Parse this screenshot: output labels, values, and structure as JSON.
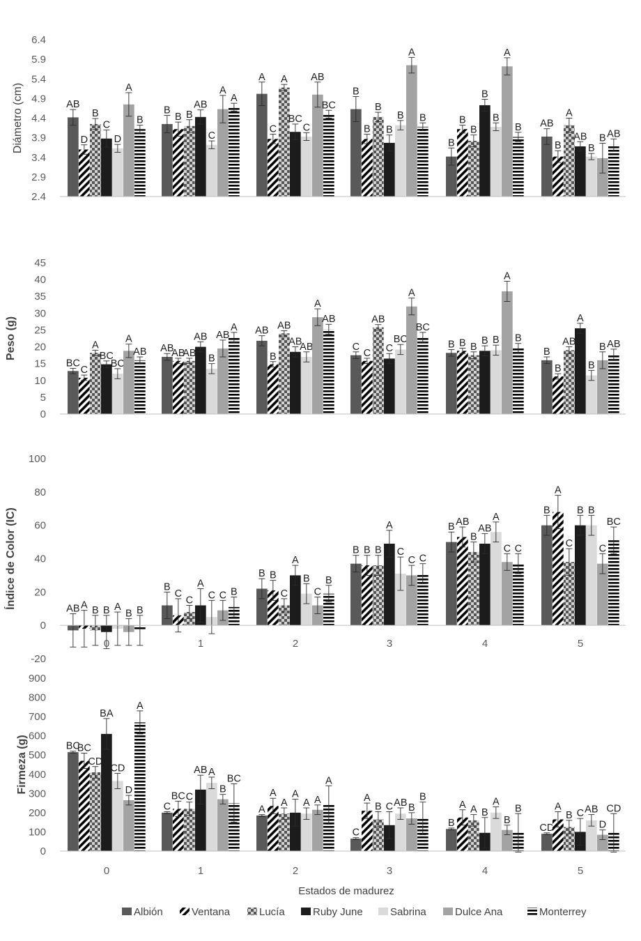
{
  "chart_data": [
    {
      "type": "bar",
      "ylabel": "Diámetro (cm)",
      "ylim": [
        2.4,
        6.4
      ],
      "yticks": [
        "2.4",
        "2.9",
        "3.4",
        "3.9",
        "4.4",
        "4.9",
        "5.4",
        "5.9",
        "6.4"
      ],
      "categories": [
        "0",
        "1",
        "2",
        "3",
        "4",
        "5"
      ],
      "show_categories": false,
      "series": [
        {
          "name": "Albión",
          "values": [
            4.42,
            4.25,
            5.02,
            4.63,
            3.42,
            3.93
          ],
          "errors": [
            0.2,
            0.22,
            0.3,
            0.32,
            0.22,
            0.2
          ],
          "letters": [
            "AB",
            "B",
            "A",
            "B",
            "B",
            "AB"
          ]
        },
        {
          "name": "Ventana",
          "values": [
            3.6,
            4.12,
            3.87,
            3.87,
            4.12,
            3.42
          ],
          "errors": [
            0.12,
            0.18,
            0.12,
            0.12,
            0.1,
            0.15
          ],
          "letters": [
            "D",
            "B",
            "C",
            "B",
            "B",
            "B"
          ]
        },
        {
          "name": "Lucía",
          "values": [
            4.25,
            4.2,
            5.18,
            4.43,
            3.82,
            4.22
          ],
          "errors": [
            0.14,
            0.16,
            0.08,
            0.12,
            0.15,
            0.18
          ],
          "letters": [
            "B",
            "B",
            "A",
            "B",
            "B",
            "A"
          ]
        },
        {
          "name": "Ruby June",
          "values": [
            3.88,
            4.43,
            4.05,
            3.77,
            4.73,
            3.68
          ],
          "errors": [
            0.22,
            0.18,
            0.2,
            0.2,
            0.15,
            0.12
          ],
          "letters": [
            "C",
            "AB",
            "BC",
            "B",
            "B",
            "AB"
          ]
        },
        {
          "name": "Sabrina",
          "values": [
            3.63,
            3.72,
            3.93,
            4.22,
            4.18,
            3.42
          ],
          "errors": [
            0.1,
            0.1,
            0.1,
            0.12,
            0.1,
            0.08
          ],
          "letters": [
            "D",
            "C",
            "C",
            "B",
            "B",
            "B"
          ]
        },
        {
          "name": "Dulce Ana",
          "values": [
            4.75,
            4.63,
            5.0,
            5.75,
            5.72,
            3.38
          ],
          "errors": [
            0.3,
            0.35,
            0.32,
            0.2,
            0.22,
            0.38
          ],
          "letters": [
            "A",
            "A",
            "AB",
            "A",
            "A",
            "B"
          ]
        },
        {
          "name": "Monterrey",
          "values": [
            4.12,
            4.68,
            4.5,
            4.18,
            3.92,
            3.72
          ],
          "errors": [
            0.1,
            0.1,
            0.1,
            0.1,
            0.12,
            0.15
          ],
          "letters": [
            "B",
            "A",
            "BC",
            "B",
            "B",
            "AB"
          ]
        }
      ]
    },
    {
      "type": "bar",
      "ylabel": "Peso (g)",
      "ylim": [
        0,
        45
      ],
      "yticks": [
        "0",
        "5",
        "10",
        "15",
        "20",
        "25",
        "30",
        "35",
        "40",
        "45"
      ],
      "categories": [
        "0",
        "1",
        "2",
        "3",
        "4",
        "5"
      ],
      "show_categories": false,
      "series": [
        {
          "name": "Albión",
          "values": [
            12.8,
            17.0,
            21.8,
            17.5,
            18.2,
            16.0
          ],
          "errors": [
            0.8,
            1.0,
            1.5,
            1.0,
            1.0,
            1.0
          ],
          "letters": [
            "BC",
            "AB",
            "AB",
            "C",
            "B",
            "B"
          ]
        },
        {
          "name": "Ventana",
          "values": [
            10.8,
            15.8,
            14.8,
            15.8,
            18.8,
            11.2
          ],
          "errors": [
            0.8,
            0.8,
            0.8,
            0.8,
            0.8,
            0.8
          ],
          "letters": [
            "C",
            "AB",
            "B",
            "C",
            "B",
            "B"
          ]
        },
        {
          "name": "Lucía",
          "values": [
            18.2,
            15.8,
            24.0,
            25.8,
            17.5,
            19.0
          ],
          "errors": [
            0.8,
            0.8,
            0.8,
            0.8,
            1.0,
            1.0
          ],
          "letters": [
            "A",
            "AB",
            "AB",
            "AB",
            "B",
            "AB"
          ]
        },
        {
          "name": "Ruby June",
          "values": [
            14.8,
            20.0,
            18.5,
            16.5,
            18.8,
            25.5
          ],
          "errors": [
            1.0,
            1.5,
            1.5,
            1.5,
            1.5,
            1.5
          ],
          "letters": [
            "BC",
            "AB",
            "AB",
            "C",
            "B",
            "A"
          ]
        },
        {
          "name": "Sabrina",
          "values": [
            12.0,
            13.5,
            17.0,
            19.2,
            19.0,
            11.5
          ],
          "errors": [
            1.5,
            1.5,
            1.5,
            1.5,
            1.5,
            1.5
          ],
          "letters": [
            "BC",
            "B",
            "AB",
            "BC",
            "B",
            "B"
          ]
        },
        {
          "name": "Dulce Ana",
          "values": [
            18.8,
            19.5,
            28.8,
            32.0,
            36.5,
            16.0
          ],
          "errors": [
            2.0,
            2.5,
            2.5,
            2.5,
            3.0,
            2.5
          ],
          "letters": [
            "A",
            "AB",
            "A",
            "A",
            "A",
            "B"
          ]
        },
        {
          "name": "Monterrey",
          "values": [
            16.0,
            22.8,
            25.2,
            22.8,
            19.5,
            17.8
          ],
          "errors": [
            1.0,
            1.5,
            1.5,
            1.5,
            1.5,
            1.5
          ],
          "letters": [
            "AB",
            "A",
            "AB",
            "BC",
            "B",
            "AB"
          ]
        }
      ]
    },
    {
      "type": "bar",
      "ylabel": "Índice de Color (IC)",
      "ylim": [
        -20,
        100
      ],
      "yticks": [
        "-20",
        "0",
        "20",
        "40",
        "60",
        "80",
        "100"
      ],
      "categories": [
        "0",
        "1",
        "2",
        "3",
        "4",
        "5"
      ],
      "show_categories": true,
      "series": [
        {
          "name": "Albión",
          "values": [
            -3,
            12,
            22,
            37,
            50,
            60
          ],
          "errors": [
            10,
            8,
            6,
            5,
            6,
            6
          ],
          "letters": [
            "AB",
            "B",
            "B",
            "B",
            "B",
            "B"
          ]
        },
        {
          "name": "Ventana",
          "values": [
            -2,
            6,
            21,
            36,
            53,
            68
          ],
          "errors": [
            11,
            10,
            6,
            6,
            6,
            10
          ],
          "letters": [
            "A",
            "C",
            "B",
            "B",
            "AB",
            "A"
          ]
        },
        {
          "name": "Lucía",
          "values": [
            -3,
            8,
            12,
            36,
            44,
            38
          ],
          "errors": [
            9,
            4,
            4,
            6,
            6,
            8
          ],
          "letters": [
            "B",
            "C",
            "C",
            "B",
            "B",
            "C"
          ]
        },
        {
          "name": "Ruby June",
          "values": [
            -4,
            12,
            30,
            49,
            49,
            60
          ],
          "errors": [
            10,
            10,
            6,
            8,
            6,
            6
          ],
          "letters": [
            "B",
            "A",
            "A",
            "A",
            "AB",
            "B"
          ]
        },
        {
          "name": "Sabrina",
          "values": [
            -2,
            5,
            19,
            31,
            56,
            60
          ],
          "errors": [
            10,
            10,
            6,
            10,
            6,
            6
          ],
          "letters": [
            "A",
            "C",
            "B",
            "C",
            "A",
            "B"
          ]
        },
        {
          "name": "Dulce Ana",
          "values": [
            -4,
            9,
            12,
            30,
            38,
            37
          ],
          "errors": [
            8,
            6,
            5,
            6,
            5,
            6
          ],
          "letters": [
            "B",
            "C",
            "C",
            "C",
            "C",
            "C"
          ]
        },
        {
          "name": "Monterrey",
          "values": [
            -3,
            11,
            19,
            31,
            37,
            51
          ],
          "errors": [
            9,
            6,
            5,
            6,
            6,
            8
          ],
          "letters": [
            "B",
            "B",
            "B",
            "C",
            "C",
            "BC"
          ]
        }
      ]
    },
    {
      "type": "bar",
      "ylabel": "Firmeza (g)",
      "xlabel": "Estados de madurez",
      "ylim": [
        0,
        900
      ],
      "yticks": [
        "0",
        "100",
        "200",
        "300",
        "400",
        "500",
        "600",
        "700",
        "800",
        "900"
      ],
      "categories": [
        "0",
        "1",
        "2",
        "3",
        "4",
        "5"
      ],
      "show_categories": true,
      "series": [
        {
          "name": "Albión",
          "values": [
            515,
            200,
            185,
            65,
            115,
            90
          ],
          "errors": [
            5,
            5,
            5,
            5,
            5,
            5
          ],
          "letters": [
            "BC",
            "C",
            "A",
            "C",
            "B",
            "CD"
          ]
        },
        {
          "name": "Ventana",
          "values": [
            470,
            220,
            235,
            210,
            175,
            165
          ],
          "errors": [
            40,
            40,
            40,
            40,
            40,
            40
          ],
          "letters": [
            "BC",
            "BC",
            "A",
            "A",
            "A",
            "A"
          ]
        },
        {
          "name": "Lucía",
          "values": [
            410,
            220,
            195,
            165,
            160,
            125
          ],
          "errors": [
            30,
            35,
            30,
            40,
            30,
            35
          ],
          "letters": [
            "CD",
            "C",
            "A",
            "B",
            "A",
            "B"
          ]
        },
        {
          "name": "Ruby June",
          "values": [
            610,
            320,
            200,
            135,
            95,
            100
          ],
          "errors": [
            80,
            75,
            70,
            70,
            80,
            70
          ],
          "letters": [
            "BA",
            "AB",
            "A",
            "C",
            "B",
            "C"
          ]
        },
        {
          "name": "Sabrina",
          "values": [
            365,
            355,
            195,
            195,
            200,
            160
          ],
          "errors": [
            40,
            30,
            30,
            30,
            30,
            30
          ],
          "letters": [
            "CD",
            "A",
            "A",
            "AB",
            "A",
            "AB"
          ]
        },
        {
          "name": "Dulce Ana",
          "values": [
            265,
            270,
            215,
            170,
            110,
            85
          ],
          "errors": [
            25,
            25,
            25,
            30,
            25,
            25
          ],
          "letters": [
            "D",
            "B",
            "A",
            "B",
            "B",
            "D"
          ]
        },
        {
          "name": "Monterrey",
          "values": [
            670,
            250,
            240,
            170,
            95,
            95
          ],
          "errors": [
            60,
            100,
            100,
            85,
            100,
            100
          ],
          "letters": [
            "A",
            "BC",
            "A",
            "B",
            "B",
            "CD"
          ]
        }
      ]
    }
  ],
  "legend": [
    "Albión",
    "Ventana",
    "Lucía",
    "Ruby June",
    "Sabrina",
    "Dulce Ana",
    "Monterrey"
  ]
}
